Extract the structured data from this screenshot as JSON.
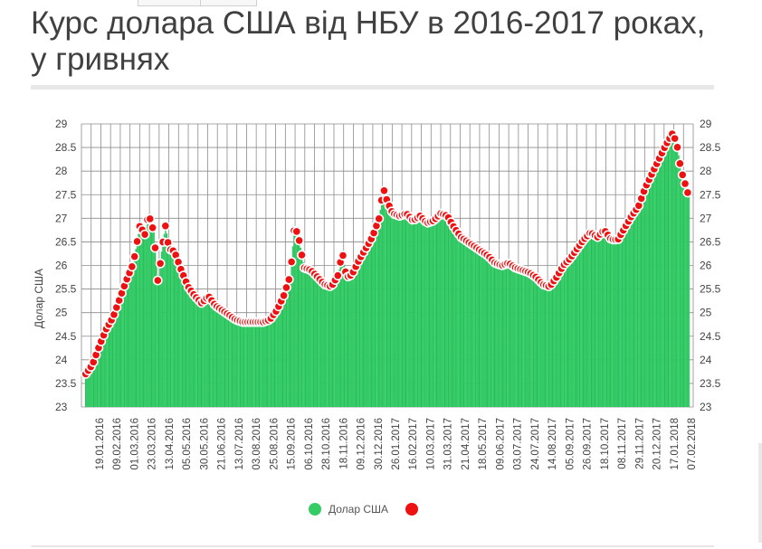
{
  "page": {
    "title": "Курс долара США від НБУ в 2016-2017 роках, у гривнях"
  },
  "chart_data": {
    "type": "bar",
    "title": "Курс долара США від НБУ в 2016-2017 роках, у гривнях",
    "xlabel": "",
    "ylabel": "Долар США",
    "ylim": [
      23,
      29
    ],
    "y_ticks": [
      23,
      23.5,
      24,
      24.5,
      25,
      25.5,
      26,
      26.5,
      27,
      27.5,
      28,
      28.5,
      29
    ],
    "y_tick_labels": [
      "23",
      "23.5",
      "24",
      "24.5",
      "25",
      "25.5",
      "26",
      "26.5",
      "27",
      "27.5",
      "28",
      "28.5",
      "29"
    ],
    "x_tick_labels": [
      "19.01.2016",
      "09.02.2016",
      "01.03.2016",
      "23.03.2016",
      "13.04.2016",
      "05.05.2016",
      "30.05.2016",
      "21.06.2016",
      "13.07.2016",
      "03.08.2016",
      "25.08.2016",
      "15.09.2016",
      "06.10.2016",
      "28.10.2016",
      "18.11.2016",
      "09.12.2016",
      "30.12.2016",
      "26.01.2017",
      "16.02.2017",
      "10.03.2017",
      "31.03.2017",
      "21.04.2017",
      "18.05.2017",
      "09.06.2017",
      "03.07.2017",
      "24.07.2017",
      "14.08.2017",
      "05.09.2017",
      "26.09.2017",
      "18.10.2017",
      "08.11.2017",
      "29.11.2017",
      "20.12.2017",
      "17.01.2018",
      "07.02.2018"
    ],
    "grid": true,
    "legend_position": "bottom",
    "colors": {
      "bar": "#33cc66",
      "bar_stroke": "#1f9e4d",
      "marker": "#ee1111",
      "marker_stroke": "#ffffff",
      "grid": "#8c8c8c"
    },
    "series": [
      {
        "name": "Долар США",
        "anchors": [
          [
            0,
            23.7
          ],
          [
            1,
            23.9
          ],
          [
            2,
            24.3
          ],
          [
            3,
            24.65
          ],
          [
            4,
            24.9
          ],
          [
            5,
            25.3
          ],
          [
            6,
            25.7
          ],
          [
            7,
            26.05
          ],
          [
            8,
            26.9
          ],
          [
            8.6,
            26.6
          ],
          [
            9.2,
            27.1
          ],
          [
            10,
            26.7
          ],
          [
            10.6,
            25.6
          ],
          [
            11.2,
            26.4
          ],
          [
            11.7,
            26.85
          ],
          [
            12.2,
            26.35
          ],
          [
            13,
            26.3
          ],
          [
            14,
            25.9
          ],
          [
            15,
            25.55
          ],
          [
            16,
            25.35
          ],
          [
            17,
            25.2
          ],
          [
            18,
            25.35
          ],
          [
            19,
            25.15
          ],
          [
            20,
            25.05
          ],
          [
            21,
            24.95
          ],
          [
            22,
            24.85
          ],
          [
            23,
            24.8
          ],
          [
            24,
            24.8
          ],
          [
            25,
            24.8
          ],
          [
            26,
            24.8
          ],
          [
            27,
            24.85
          ],
          [
            28,
            25.05
          ],
          [
            29,
            25.35
          ],
          [
            30,
            25.8
          ],
          [
            30.6,
            26.85
          ],
          [
            31.2,
            26.6
          ],
          [
            32,
            25.95
          ],
          [
            33,
            25.9
          ],
          [
            34,
            25.75
          ],
          [
            35,
            25.6
          ],
          [
            36,
            25.55
          ],
          [
            37,
            25.8
          ],
          [
            37.6,
            26.3
          ],
          [
            38.2,
            25.75
          ],
          [
            39,
            25.8
          ],
          [
            40,
            26.1
          ],
          [
            41,
            26.35
          ],
          [
            42,
            26.6
          ],
          [
            43,
            27.0
          ],
          [
            43.6,
            27.65
          ],
          [
            44.2,
            27.35
          ],
          [
            45,
            27.1
          ],
          [
            46,
            27.05
          ],
          [
            47,
            27.1
          ],
          [
            48,
            26.95
          ],
          [
            49,
            27.05
          ],
          [
            50,
            26.9
          ],
          [
            51,
            26.95
          ],
          [
            52,
            27.1
          ],
          [
            53,
            27.05
          ],
          [
            54,
            26.8
          ],
          [
            55,
            26.6
          ],
          [
            56,
            26.5
          ],
          [
            57,
            26.4
          ],
          [
            58,
            26.3
          ],
          [
            59,
            26.2
          ],
          [
            60,
            26.05
          ],
          [
            61,
            26.0
          ],
          [
            62,
            26.05
          ],
          [
            63,
            25.95
          ],
          [
            64,
            25.9
          ],
          [
            65,
            25.85
          ],
          [
            66,
            25.75
          ],
          [
            67,
            25.6
          ],
          [
            68,
            25.55
          ],
          [
            69,
            25.75
          ],
          [
            70,
            26.0
          ],
          [
            71,
            26.15
          ],
          [
            72,
            26.35
          ],
          [
            73,
            26.55
          ],
          [
            74,
            26.7
          ],
          [
            75,
            26.6
          ],
          [
            76,
            26.75
          ],
          [
            77,
            26.55
          ],
          [
            78,
            26.55
          ],
          [
            79,
            26.8
          ],
          [
            80,
            27.05
          ],
          [
            81,
            27.25
          ],
          [
            82,
            27.65
          ],
          [
            83,
            27.95
          ],
          [
            84,
            28.25
          ],
          [
            85,
            28.55
          ],
          [
            86,
            28.8
          ],
          [
            86.6,
            28.6
          ],
          [
            87.2,
            28.05
          ],
          [
            87.8,
            27.75
          ],
          [
            88.4,
            27.45
          ]
        ]
      }
    ]
  },
  "legend": {
    "items": [
      {
        "label": "Долар США"
      }
    ]
  }
}
